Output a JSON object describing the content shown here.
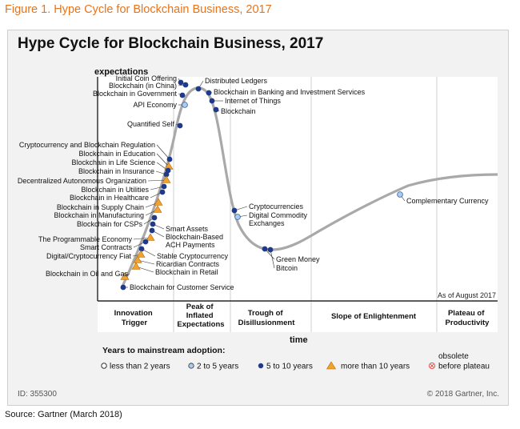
{
  "figure_caption": "Figure 1. Hype Cycle for Blockchain Business, 2017",
  "source_note": "Source: Gartner (March 2018)",
  "colors": {
    "caption": "#e8741c",
    "curve": "#a9a9a9",
    "dot_dark": "#1f3a8a",
    "dot_light": "#a9cdf0",
    "triangle": "#f0a22e",
    "obsolete": "#e0504a"
  },
  "chart_data": {
    "type": "scatter",
    "title": "Hype Cycle for Blockchain Business, 2017",
    "ylabel": "expectations",
    "xlabel": "time",
    "as_of": "As of August 2017",
    "grid": "vertical phase dividers only",
    "phases": [
      "Innovation Trigger",
      "Peak of Inflated Expectations",
      "Trough of Disillusionment",
      "Slope of Enlightenment",
      "Plateau of Productivity"
    ],
    "legend": {
      "title": "Years to mainstream adoption:",
      "entries": [
        {
          "marker": "hollow",
          "label": "less than 2 years"
        },
        {
          "marker": "light",
          "label": "2 to 5 years"
        },
        {
          "marker": "dark",
          "label": "5 to 10 years"
        },
        {
          "marker": "triangle",
          "label": "more than 10 years"
        },
        {
          "marker": "obsolete",
          "label": "obsolete before plateau"
        }
      ]
    },
    "items": [
      {
        "name": "Initial Coin Offering",
        "phase": "Peak of Inflated Expectations",
        "adoption": "5 to 10 years"
      },
      {
        "name": "Blockchain (in China)",
        "phase": "Peak of Inflated Expectations",
        "adoption": "5 to 10 years"
      },
      {
        "name": "Blockchain in Government",
        "phase": "Peak of Inflated Expectations",
        "adoption": "5 to 10 years"
      },
      {
        "name": "API Economy",
        "phase": "Peak of Inflated Expectations",
        "adoption": "2 to 5 years"
      },
      {
        "name": "Quantified Self",
        "phase": "Peak of Inflated Expectations",
        "adoption": "5 to 10 years"
      },
      {
        "name": "Distributed Ledgers",
        "phase": "Peak of Inflated Expectations",
        "adoption": "5 to 10 years"
      },
      {
        "name": "Blockchain in Banking and Investment Services",
        "phase": "Peak of Inflated Expectations",
        "adoption": "5 to 10 years"
      },
      {
        "name": "Internet of Things",
        "phase": "Peak of Inflated Expectations",
        "adoption": "5 to 10 years"
      },
      {
        "name": "Blockchain",
        "phase": "Peak of Inflated Expectations",
        "adoption": "5 to 10 years"
      },
      {
        "name": "Cryptocurrency and Blockchain Regulation",
        "phase": "Innovation Trigger",
        "adoption": "5 to 10 years"
      },
      {
        "name": "Blockchain in Education",
        "phase": "Innovation Trigger",
        "adoption": "more than 10 years"
      },
      {
        "name": "Blockchain in Life Science",
        "phase": "Innovation Trigger",
        "adoption": "5 to 10 years"
      },
      {
        "name": "Blockchain in Insurance",
        "phase": "Innovation Trigger",
        "adoption": "5 to 10 years"
      },
      {
        "name": "Decentralized Autonomous Organization",
        "phase": "Innovation Trigger",
        "adoption": "more than 10 years"
      },
      {
        "name": "Blockchain in Utilities",
        "phase": "Innovation Trigger",
        "adoption": "5 to 10 years"
      },
      {
        "name": "Blockchain in Healthcare",
        "phase": "Innovation Trigger",
        "adoption": "5 to 10 years"
      },
      {
        "name": "Blockchain in Supply Chain",
        "phase": "Innovation Trigger",
        "adoption": "more than 10 years"
      },
      {
        "name": "Blockchain in Manufacturing",
        "phase": "Innovation Trigger",
        "adoption": "more than 10 years"
      },
      {
        "name": "Blockchain for CSPs",
        "phase": "Innovation Trigger",
        "adoption": "5 to 10 years"
      },
      {
        "name": "Smart Assets",
        "phase": "Innovation Trigger",
        "adoption": "5 to 10 years"
      },
      {
        "name": "Blockchain-Based ACH Payments",
        "phase": "Innovation Trigger",
        "adoption": "5 to 10 years"
      },
      {
        "name": "The Programmable Economy",
        "phase": "Innovation Trigger",
        "adoption": "more than 10 years"
      },
      {
        "name": "Smart Contracts",
        "phase": "Innovation Trigger",
        "adoption": "5 to 10 years"
      },
      {
        "name": "Stable Cryptocurrency",
        "phase": "Innovation Trigger",
        "adoption": "5 to 10 years"
      },
      {
        "name": "Digital/Cryptocurrency Fiat",
        "phase": "Innovation Trigger",
        "adoption": "more than 10 years"
      },
      {
        "name": "Ricardian Contracts",
        "phase": "Innovation Trigger",
        "adoption": "more than 10 years"
      },
      {
        "name": "Blockchain in Retail",
        "phase": "Innovation Trigger",
        "adoption": "more than 10 years"
      },
      {
        "name": "Blockchain in Oil and Gas",
        "phase": "Innovation Trigger",
        "adoption": "more than 10 years"
      },
      {
        "name": "Blockchain for Customer Service",
        "phase": "Innovation Trigger",
        "adoption": "5 to 10 years"
      },
      {
        "name": "Cryptocurrencies",
        "phase": "Trough of Disillusionment",
        "adoption": "5 to 10 years"
      },
      {
        "name": "Digital Commodity Exchanges",
        "phase": "Trough of Disillusionment",
        "adoption": "2 to 5 years"
      },
      {
        "name": "Green Money",
        "phase": "Trough of Disillusionment",
        "adoption": "5 to 10 years"
      },
      {
        "name": "Bitcoin",
        "phase": "Trough of Disillusionment",
        "adoption": "5 to 10 years"
      },
      {
        "name": "Complementary Currency",
        "phase": "Slope of Enlightenment",
        "adoption": "2 to 5 years"
      }
    ]
  },
  "footer": {
    "id": "ID: 355300",
    "copyright": "© 2018 Gartner, Inc."
  }
}
